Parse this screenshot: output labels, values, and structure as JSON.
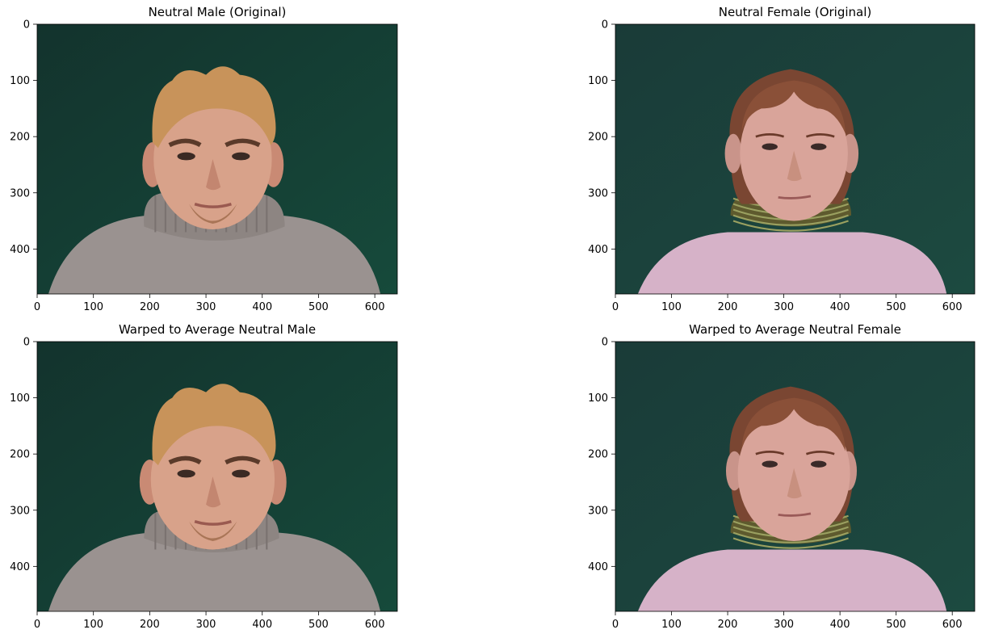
{
  "figure": {
    "panels": [
      {
        "id": "p1",
        "title": "Neutral Male (Original)",
        "subject": "male",
        "warped": false,
        "image": "photo of a young man with blond spiky hair and goatee wearing a grey turtleneck sweater against a dark green background"
      },
      {
        "id": "p2",
        "title": "Neutral Female (Original)",
        "subject": "female",
        "warped": false,
        "image": "photo of a young woman with auburn hair and bangs wearing a pink knit sweater with a striped collar against a dark green background"
      },
      {
        "id": "p3",
        "title": "Warped to Average Neutral Male",
        "subject": "male",
        "warped": true,
        "image": "warped photo of the young man, face reshaped to average male geometry"
      },
      {
        "id": "p4",
        "title": "Warped to Average Neutral Female",
        "subject": "female",
        "warped": true,
        "image": "warped photo of the young woman, face reshaped to average female geometry"
      }
    ],
    "x_ticks": [
      "0",
      "100",
      "200",
      "300",
      "400",
      "500",
      "600"
    ],
    "y_ticks": [
      "0",
      "100",
      "200",
      "300",
      "400"
    ],
    "x_range": [
      0,
      640
    ],
    "y_range": [
      0,
      480
    ],
    "colors": {
      "background_green": "#123c32",
      "skin_male": "#d8a28a",
      "hair_male": "#c8935a",
      "sweater_male": "#9a9290",
      "skin_female": "#d9a49a",
      "hair_female": "#8a5038",
      "sweater_female": "#d6b2c8",
      "collar_female": "#5e5a2e"
    }
  }
}
